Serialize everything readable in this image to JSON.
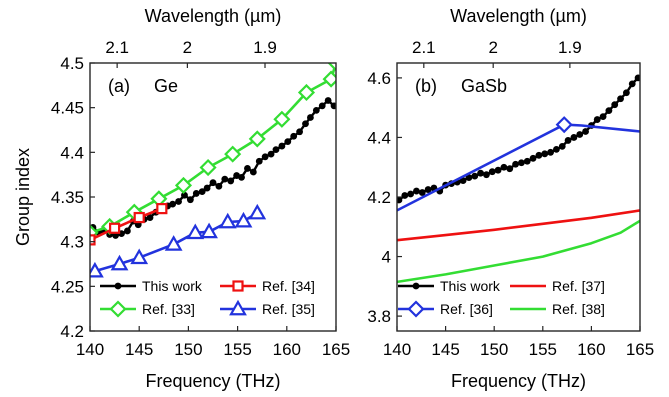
{
  "chart_data": [
    {
      "panel": "a",
      "type": "line",
      "panel_label": "(a)",
      "material": "Ge",
      "title": "",
      "xlabel": "Frequency (THz)",
      "ylabel": "Group index",
      "top_xlabel": "Wavelength (µm)",
      "xlim": [
        140,
        165
      ],
      "ylim": [
        4.2,
        4.5
      ],
      "x_ticks": [
        140,
        145,
        150,
        155,
        160,
        165
      ],
      "x_tick_labels": [
        "140",
        "145",
        "150",
        "155",
        "160",
        "165"
      ],
      "y_ticks": [
        4.2,
        4.25,
        4.3,
        4.35,
        4.4,
        4.45,
        4.5
      ],
      "y_tick_labels": [
        "4.2",
        "4.25",
        "4.3",
        "4.35",
        "4.4",
        "4.45",
        "4.5"
      ],
      "top_ticks": [
        2.1,
        2.0,
        1.9
      ],
      "top_tick_labels": [
        "2.1",
        "2",
        "1.9"
      ],
      "grid": false,
      "legend": {
        "placement": "bottom",
        "columns": [
          [
            "This work",
            "Ref. [33]"
          ],
          [
            "Ref. [34]",
            "Ref. [35]"
          ]
        ]
      },
      "series": [
        {
          "name": "This work",
          "color": "#000000",
          "marker": "dot",
          "x": [
            140.3,
            140.9,
            141.4,
            142.0,
            142.6,
            143.2,
            143.8,
            144.4,
            144.9,
            145.5,
            146.1,
            146.7,
            147.3,
            147.9,
            148.4,
            149.0,
            149.6,
            150.2,
            150.8,
            151.4,
            151.9,
            152.5,
            153.1,
            153.7,
            154.3,
            154.9,
            155.4,
            156.0,
            156.6,
            157.2,
            157.8,
            158.4,
            158.9,
            159.5,
            160.1,
            160.7,
            161.3,
            161.9,
            162.4,
            163.0,
            163.6,
            164.2,
            164.8
          ],
          "values": [
            4.316,
            4.31,
            4.313,
            4.308,
            4.307,
            4.309,
            4.312,
            4.323,
            4.319,
            4.325,
            4.327,
            4.333,
            4.336,
            4.34,
            4.342,
            4.345,
            4.352,
            4.347,
            4.354,
            4.356,
            4.36,
            4.366,
            4.362,
            4.37,
            4.368,
            4.374,
            4.372,
            4.382,
            4.378,
            4.39,
            4.395,
            4.398,
            4.403,
            4.407,
            4.412,
            4.418,
            4.423,
            4.432,
            4.439,
            4.447,
            4.452,
            4.458,
            4.452
          ]
        },
        {
          "name": "Ref. [33]",
          "color": "#33dd33",
          "marker": "diamond",
          "x": [
            140,
            142,
            144.5,
            147,
            149.5,
            152,
            154.5,
            157,
            159.5,
            162,
            164.5,
            165
          ],
          "values": [
            4.31,
            4.317,
            4.333,
            4.348,
            4.363,
            4.383,
            4.398,
            4.415,
            4.437,
            4.467,
            4.482,
            4.5
          ]
        },
        {
          "name": "Ref. [34]",
          "color": "#ee1111",
          "marker": "square",
          "x": [
            140,
            142.5,
            145,
            147.3
          ],
          "values": [
            4.302,
            4.315,
            4.327,
            4.337
          ]
        },
        {
          "name": "Ref. [35]",
          "color": "#2233dd",
          "marker": "triangle",
          "x": [
            140.5,
            143,
            145,
            148.5,
            150.7,
            152.1,
            154,
            155.6,
            157
          ],
          "values": [
            4.267,
            4.275,
            4.282,
            4.297,
            4.31,
            4.311,
            4.322,
            4.323,
            4.332
          ]
        }
      ]
    },
    {
      "panel": "b",
      "type": "line",
      "panel_label": "(b)",
      "material": "GaSb",
      "title": "",
      "xlabel": "Frequency (THz)",
      "ylabel": "",
      "top_xlabel": "Wavelength (µm)",
      "xlim": [
        140,
        165
      ],
      "ylim": [
        3.75,
        4.65
      ],
      "x_ticks": [
        140,
        145,
        150,
        155,
        160,
        165
      ],
      "x_tick_labels": [
        "140",
        "145",
        "150",
        "155",
        "160",
        "165"
      ],
      "y_ticks": [
        3.8,
        4.0,
        4.2,
        4.4,
        4.6
      ],
      "y_tick_labels": [
        "3.8",
        "4",
        "4.2",
        "4.4",
        "4.6"
      ],
      "top_ticks": [
        2.1,
        2.0,
        1.9
      ],
      "top_tick_labels": [
        "2.1",
        "2",
        "1.9"
      ],
      "grid": false,
      "legend": {
        "placement": "bottom",
        "columns": [
          [
            "This work",
            "Ref. [36]"
          ],
          [
            "Ref. [37]",
            "Ref. [38]"
          ]
        ]
      },
      "series": [
        {
          "name": "This work",
          "color": "#000000",
          "marker": "dot",
          "x": [
            140.2,
            140.8,
            141.4,
            142.0,
            142.6,
            143.2,
            143.8,
            144.4,
            145.0,
            145.6,
            146.2,
            146.8,
            147.4,
            148.0,
            148.6,
            149.2,
            149.8,
            150.4,
            151.0,
            151.6,
            152.2,
            152.8,
            153.4,
            154.0,
            154.6,
            155.2,
            155.8,
            156.4,
            157.0,
            157.6,
            158.2,
            158.8,
            159.4,
            160.0,
            160.6,
            161.2,
            161.8,
            162.4,
            163.0,
            163.6,
            164.2,
            164.8
          ],
          "values": [
            4.19,
            4.205,
            4.21,
            4.22,
            4.215,
            4.225,
            4.23,
            4.22,
            4.24,
            4.245,
            4.25,
            4.255,
            4.265,
            4.27,
            4.28,
            4.275,
            4.285,
            4.29,
            4.3,
            4.295,
            4.31,
            4.315,
            4.32,
            4.33,
            4.34,
            4.345,
            4.35,
            4.36,
            4.37,
            4.39,
            4.4,
            4.41,
            4.42,
            4.44,
            4.46,
            4.47,
            4.49,
            4.51,
            4.53,
            4.55,
            4.58,
            4.6
          ]
        },
        {
          "name": "Ref. [36]",
          "color": "#2233dd",
          "marker": "diamond",
          "x": [
            140,
            157.2,
            159,
            165
          ],
          "values": [
            4.155,
            4.443,
            4.44,
            4.42
          ],
          "marker_x": [
            157.2
          ],
          "marker_values": [
            4.443
          ]
        },
        {
          "name": "Ref. [37]",
          "color": "#ee1111",
          "marker": "none",
          "x": [
            140,
            145,
            150,
            155,
            160,
            165
          ],
          "values": [
            4.055,
            4.072,
            4.09,
            4.11,
            4.13,
            4.155
          ]
        },
        {
          "name": "Ref. [38]",
          "color": "#33dd33",
          "marker": "none",
          "x": [
            140,
            145,
            150,
            155,
            160,
            163,
            165
          ],
          "values": [
            3.915,
            3.94,
            3.97,
            4.0,
            4.045,
            4.08,
            4.12
          ]
        }
      ]
    }
  ]
}
